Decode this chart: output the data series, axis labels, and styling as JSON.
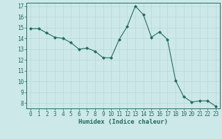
{
  "x": [
    0,
    1,
    2,
    3,
    4,
    5,
    6,
    7,
    8,
    9,
    10,
    11,
    12,
    13,
    14,
    15,
    16,
    17,
    18,
    19,
    20,
    21,
    22,
    23
  ],
  "y": [
    14.9,
    14.9,
    14.5,
    14.1,
    14.0,
    13.6,
    13.0,
    13.1,
    12.8,
    12.2,
    12.2,
    13.9,
    15.1,
    17.0,
    16.2,
    14.1,
    14.6,
    13.9,
    10.1,
    8.6,
    8.1,
    8.2,
    8.2,
    7.7
  ],
  "xlabel": "Humidex (Indice chaleur)",
  "ylim_min": 7.5,
  "ylim_max": 17.3,
  "xlim_min": -0.5,
  "xlim_max": 23.5,
  "yticks": [
    8,
    9,
    10,
    11,
    12,
    13,
    14,
    15,
    16,
    17
  ],
  "xticks": [
    0,
    1,
    2,
    3,
    4,
    5,
    6,
    7,
    8,
    9,
    10,
    11,
    12,
    13,
    14,
    15,
    16,
    17,
    18,
    19,
    20,
    21,
    22,
    23
  ],
  "xtick_labels": [
    "0",
    "1",
    "2",
    "3",
    "4",
    "5",
    "6",
    "7",
    "8",
    "9",
    "10",
    "11",
    "12",
    "13",
    "14",
    "15",
    "16",
    "17",
    "18",
    "19",
    "20",
    "21",
    "22",
    "23"
  ],
  "line_color": "#1f6b5e",
  "marker": "D",
  "marker_size": 2.0,
  "bg_color": "#cde8e8",
  "grid_color": "#b8d8d8",
  "axes_color": "#1f6b5e",
  "tick_fontsize": 5.5,
  "xlabel_fontsize": 6.5
}
